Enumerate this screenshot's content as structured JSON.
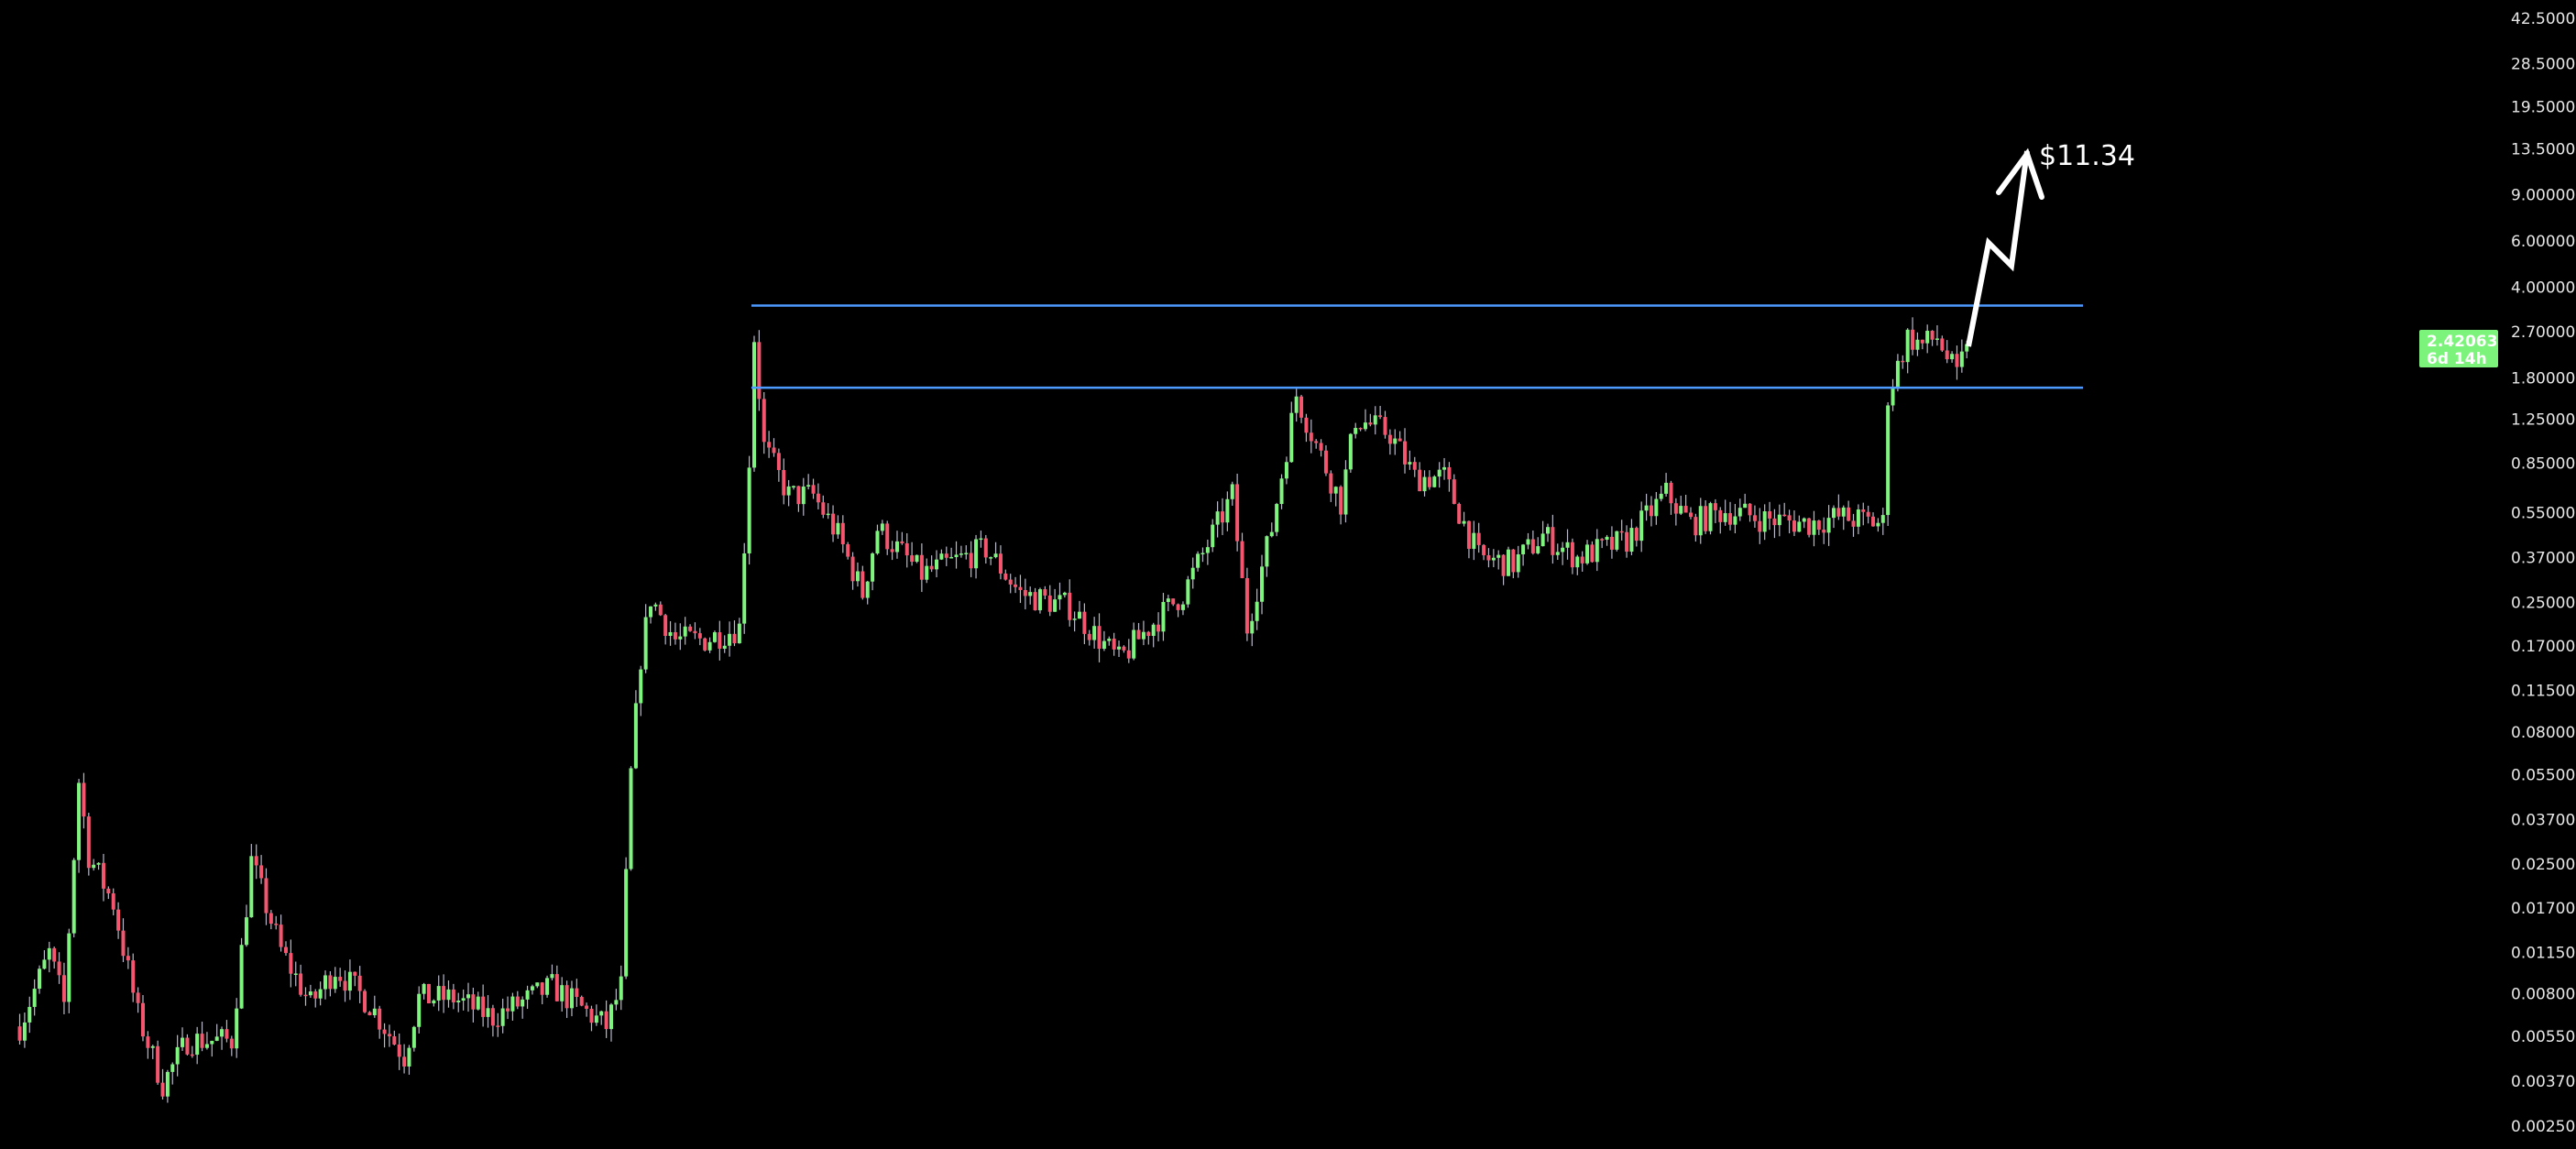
{
  "chart_data": {
    "type": "candlestick",
    "scale": "log",
    "x_unit": "bar index",
    "ylim": [
      0.0025,
      42.5
    ],
    "grid": false,
    "y_ticks": [
      "42.50000",
      "28.50000",
      "19.50000",
      "13.50000",
      "9.00000",
      "6.00000",
      "4.00000",
      "2.70000",
      "1.80000",
      "1.25000",
      "0.85000",
      "0.55000",
      "0.37000",
      "0.25000",
      "0.17000",
      "0.11500",
      "0.08000",
      "0.05500",
      "0.03700",
      "0.02500",
      "0.01700",
      "0.01150",
      "0.00800",
      "0.00550",
      "0.00370",
      "0.00250"
    ],
    "approx_close_path": [
      [
        4,
        0.006
      ],
      [
        10,
        0.0114
      ],
      [
        13,
        0.0073
      ],
      [
        16,
        0.052
      ],
      [
        18,
        0.027
      ],
      [
        23,
        0.0177
      ],
      [
        28,
        0.0066
      ],
      [
        33,
        0.0036
      ],
      [
        38,
        0.0053
      ],
      [
        47,
        0.0053
      ],
      [
        51,
        0.0256
      ],
      [
        57,
        0.0117
      ],
      [
        63,
        0.0073
      ],
      [
        68,
        0.01
      ],
      [
        75,
        0.0073
      ],
      [
        82,
        0.0046
      ],
      [
        85,
        0.0077
      ],
      [
        92,
        0.0077
      ],
      [
        100,
        0.0065
      ],
      [
        112,
        0.0085
      ],
      [
        123,
        0.006
      ],
      [
        126,
        0.0085
      ],
      [
        128,
        0.055
      ],
      [
        130,
        0.154
      ],
      [
        132,
        0.26
      ],
      [
        137,
        0.18
      ],
      [
        143,
        0.18
      ],
      [
        150,
        0.2
      ],
      [
        152,
        0.87
      ],
      [
        153,
        2.58
      ],
      [
        155,
        0.98
      ],
      [
        160,
        0.64
      ],
      [
        165,
        0.64
      ],
      [
        170,
        0.45
      ],
      [
        175,
        0.27
      ],
      [
        178,
        0.48
      ],
      [
        187,
        0.32
      ],
      [
        200,
        0.4
      ],
      [
        207,
        0.27
      ],
      [
        217,
        0.24
      ],
      [
        227,
        0.15
      ],
      [
        233,
        0.2
      ],
      [
        240,
        0.27
      ],
      [
        250,
        0.64
      ],
      [
        253,
        0.2
      ],
      [
        258,
        0.48
      ],
      [
        263,
        1.55
      ],
      [
        267,
        1.0
      ],
      [
        272,
        0.6
      ],
      [
        275,
        1.26
      ],
      [
        282,
        1.1
      ],
      [
        287,
        0.75
      ],
      [
        293,
        0.75
      ],
      [
        300,
        0.37
      ],
      [
        307,
        0.35
      ],
      [
        313,
        0.45
      ],
      [
        320,
        0.37
      ],
      [
        330,
        0.43
      ],
      [
        338,
        0.65
      ],
      [
        343,
        0.5
      ],
      [
        350,
        0.56
      ],
      [
        358,
        0.52
      ],
      [
        367,
        0.5
      ],
      [
        373,
        0.53
      ],
      [
        382,
        0.5
      ],
      [
        383,
        1.55
      ],
      [
        387,
        2.58
      ],
      [
        390,
        2.4
      ],
      [
        393,
        2.58
      ],
      [
        397,
        1.8
      ],
      [
        399,
        2.42063
      ]
    ],
    "last_price": "2.42063",
    "countdown": "6d 14h",
    "levels": [
      3.4,
      1.65
    ],
    "projection_target": "$11.34",
    "colors": {
      "up": "#7ff57f",
      "down": "#f5566f",
      "wick": "#b8b8c8",
      "level": "#4d9bff",
      "badge": "#7cf47c",
      "background": "#000000",
      "projection": "#ffffff"
    }
  }
}
